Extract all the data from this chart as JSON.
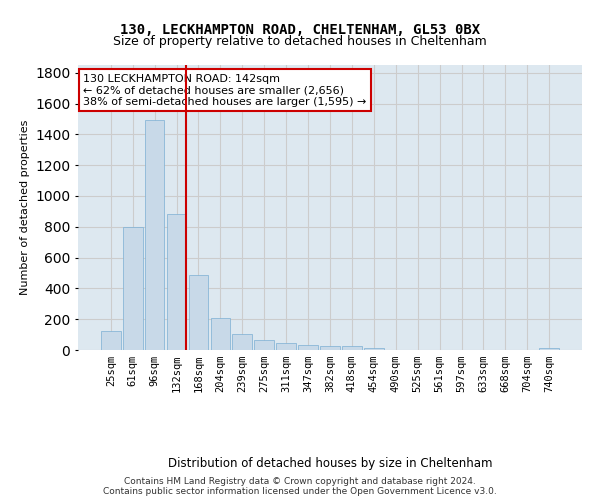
{
  "title1": "130, LECKHAMPTON ROAD, CHELTENHAM, GL53 0BX",
  "title2": "Size of property relative to detached houses in Cheltenham",
  "xlabel": "Distribution of detached houses by size in Cheltenham",
  "ylabel": "Number of detached properties",
  "categories": [
    "25sqm",
    "61sqm",
    "96sqm",
    "132sqm",
    "168sqm",
    "204sqm",
    "239sqm",
    "275sqm",
    "311sqm",
    "347sqm",
    "382sqm",
    "418sqm",
    "454sqm",
    "490sqm",
    "525sqm",
    "561sqm",
    "597sqm",
    "633sqm",
    "668sqm",
    "704sqm",
    "740sqm"
  ],
  "values": [
    125,
    800,
    1490,
    880,
    490,
    205,
    105,
    65,
    45,
    35,
    28,
    25,
    15,
    0,
    0,
    0,
    0,
    0,
    0,
    0,
    15
  ],
  "bar_color": "#c8d9e8",
  "bar_edgecolor": "#7bafd4",
  "bar_linewidth": 0.5,
  "annotation_text": "130 LECKHAMPTON ROAD: 142sqm\n← 62% of detached houses are smaller (2,656)\n38% of semi-detached houses are larger (1,595) →",
  "annotation_box_color": "#ffffff",
  "annotation_border_color": "#cc0000",
  "ylim": [
    0,
    1850
  ],
  "yticks": [
    0,
    200,
    400,
    600,
    800,
    1000,
    1200,
    1400,
    1600,
    1800
  ],
  "grid_color": "#cccccc",
  "bg_color": "#dde8f0",
  "footer1": "Contains HM Land Registry data © Crown copyright and database right 2024.",
  "footer2": "Contains public sector information licensed under the Open Government Licence v3.0."
}
